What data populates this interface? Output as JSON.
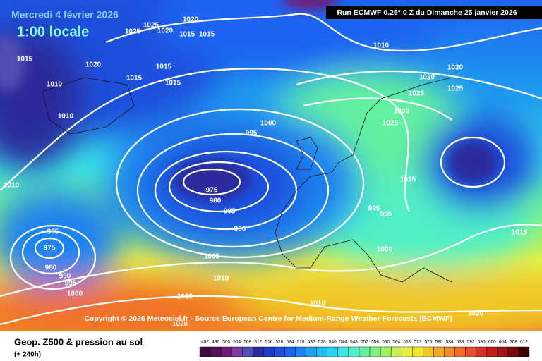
{
  "header": {
    "title": "Mercredi 4 février 2026",
    "local_time": "1:00 locale",
    "run": "Run ECMWF 0.25° 0 Z du Dimanche 25 janvier 2026"
  },
  "copyright": "Copyright © 2026 Meteociel.fr - Source European Centre for Medium-Range Weather Forecasts (ECMWF)",
  "footer": {
    "field": "Geop. Z500 & pression au sol",
    "lead": "(+ 240h)"
  },
  "isobar_labels": [
    1015,
    1010,
    1010,
    1010,
    1020,
    1025,
    1025,
    1020,
    1020,
    1015,
    1015,
    1015,
    1015,
    1015,
    1010,
    1000,
    995,
    975,
    980,
    985,
    990,
    985,
    975,
    980,
    990,
    995,
    1000,
    1005,
    1010,
    1015,
    1020,
    1010,
    1000,
    995,
    995,
    1015,
    1025,
    1030,
    1025,
    1020,
    1020,
    1025,
    1015,
    1020
  ],
  "colorbar": {
    "ticks": [
      492,
      496,
      500,
      504,
      508,
      512,
      516,
      520,
      524,
      528,
      532,
      536,
      540,
      544,
      548,
      552,
      556,
      560,
      564,
      568,
      572,
      576,
      580,
      584,
      588,
      592,
      596,
      600,
      604,
      608,
      612
    ],
    "colors": [
      "#3c0d3c",
      "#561256",
      "#701a78",
      "#7e3a9e",
      "#5050b4",
      "#2a2a9c",
      "#1e3cc8",
      "#1e50dc",
      "#1e64f0",
      "#1e82f0",
      "#1ea0f0",
      "#1ebef0",
      "#28d2f0",
      "#3ce6e6",
      "#50f0c8",
      "#64f0a0",
      "#82f082",
      "#a0f064",
      "#c8f050",
      "#e6f03c",
      "#f0e628",
      "#f0c828",
      "#f0aa28",
      "#f08c28",
      "#f06e28",
      "#e65028",
      "#d23228",
      "#be1e1e",
      "#a01414",
      "#780a0a",
      "#3c0000"
    ]
  }
}
